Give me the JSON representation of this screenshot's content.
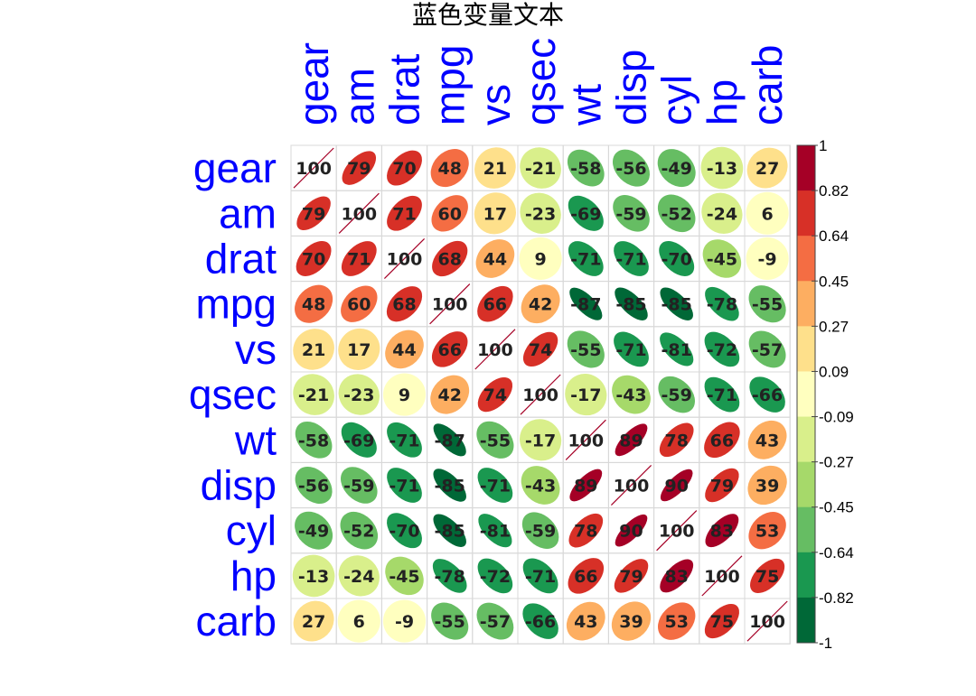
{
  "chart_data": {
    "type": "heatmap",
    "title": "蓝色变量文本",
    "variables": [
      "gear",
      "am",
      "drat",
      "mpg",
      "vs",
      "qsec",
      "wt",
      "disp",
      "cyl",
      "hp",
      "carb"
    ],
    "matrix": [
      [
        100,
        79,
        70,
        48,
        21,
        -21,
        -58,
        -56,
        -49,
        -13,
        27
      ],
      [
        79,
        100,
        71,
        60,
        17,
        -23,
        -69,
        -59,
        -52,
        -24,
        6
      ],
      [
        70,
        71,
        100,
        68,
        44,
        9,
        -71,
        -71,
        -70,
        -45,
        -9
      ],
      [
        48,
        60,
        68,
        100,
        66,
        42,
        -87,
        -85,
        -85,
        -78,
        -55
      ],
      [
        21,
        17,
        44,
        66,
        100,
        74,
        -55,
        -71,
        -81,
        -72,
        -57
      ],
      [
        -21,
        -23,
        9,
        42,
        74,
        100,
        -17,
        -43,
        -59,
        -71,
        -66
      ],
      [
        -58,
        -69,
        -71,
        -87,
        -55,
        -17,
        100,
        89,
        78,
        66,
        43
      ],
      [
        -56,
        -59,
        -71,
        -85,
        -71,
        -43,
        89,
        100,
        90,
        79,
        39
      ],
      [
        -49,
        -52,
        -70,
        -85,
        -81,
        -59,
        78,
        90,
        100,
        83,
        53
      ],
      [
        -13,
        -24,
        -45,
        -78,
        -72,
        -71,
        66,
        79,
        83,
        100,
        75
      ],
      [
        27,
        6,
        -9,
        -55,
        -57,
        -66,
        43,
        39,
        53,
        75,
        100
      ]
    ],
    "label_color": "#0000ff",
    "colorbar": {
      "ticks": [
        "1",
        "0.82",
        "0.64",
        "0.45",
        "0.27",
        "0.09",
        "-0.09",
        "-0.27",
        "-0.45",
        "-0.64",
        "-0.82",
        "-1"
      ],
      "colors": [
        "#a50026",
        "#d73027",
        "#f46d43",
        "#fdae61",
        "#fee08b",
        "#ffffbf",
        "#d9ef8b",
        "#a6d96a",
        "#66bd63",
        "#1a9850",
        "#006837"
      ]
    }
  }
}
